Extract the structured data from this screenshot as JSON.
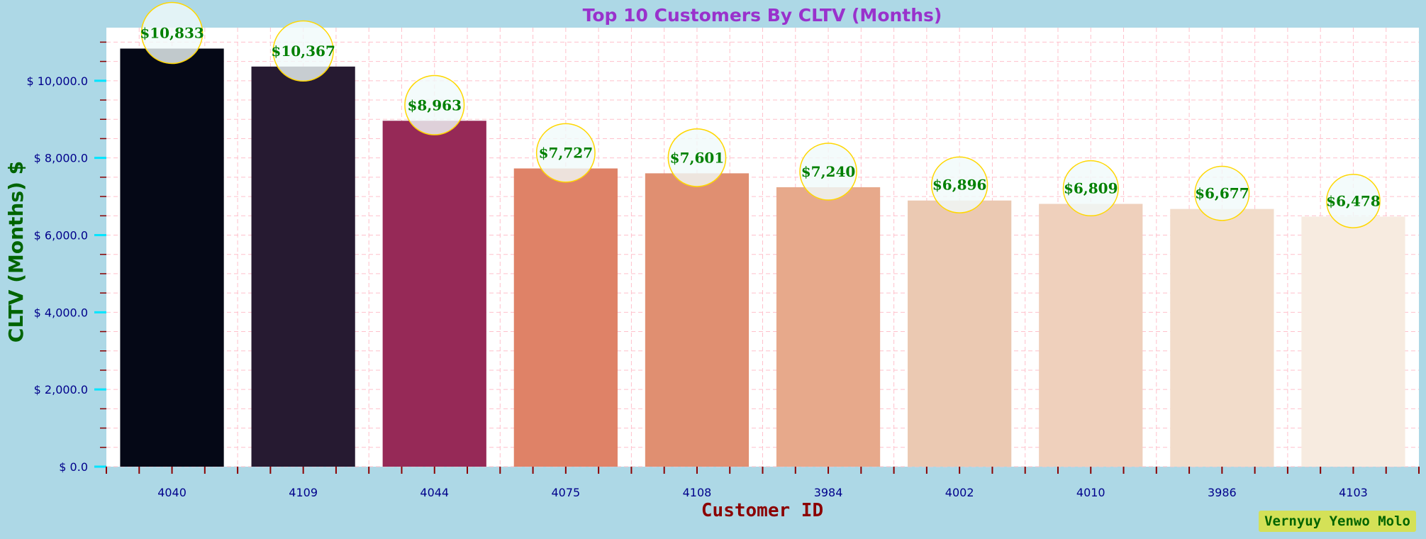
{
  "chart_data": {
    "type": "bar",
    "title": "Top 10 Customers By CLTV (Months)",
    "xlabel": "Customer ID",
    "ylabel": "CLTV (Months) $",
    "categories": [
      "4040",
      "4109",
      "4044",
      "4075",
      "4108",
      "3984",
      "4002",
      "4010",
      "3986",
      "4103"
    ],
    "values": [
      10833,
      10367,
      8963,
      7727,
      7601,
      7240,
      6896,
      6809,
      6677,
      6478
    ],
    "data_labels": [
      "$10,833",
      "$10,367",
      "$8,963",
      "$7,727",
      "$7,601",
      "$7,240",
      "$6,896",
      "$6,809",
      "$6,677",
      "$6,478"
    ],
    "y_ticks": [
      0,
      2000,
      4000,
      6000,
      8000,
      10000
    ],
    "y_tick_labels": [
      "$ 0.0",
      "$ 2,000.0",
      "$ 4,000.0",
      "$ 6,000.0",
      "$ 8,000.0",
      "$ 10,000.0"
    ],
    "ylim": [
      0,
      11375
    ],
    "grid": true,
    "bar_colors": [
      "#050816",
      "#261a31",
      "#962957",
      "#df8267",
      "#e08f71",
      "#e7a98b",
      "#ebc9b2",
      "#efd0bc",
      "#f2dcca",
      "#f7ebe0"
    ],
    "colors": {
      "background": "#add8e6",
      "plot_background": "#ffffff",
      "title": "#9932cc",
      "xlabel": "#8b0000",
      "ylabel": "#006400",
      "tick_label": "#00008b",
      "data_label": "#008000",
      "bubble_edge": "#ffd700",
      "grid": "#ffc0cb"
    }
  },
  "watermark": "Vernyuy Yenwo Molo"
}
